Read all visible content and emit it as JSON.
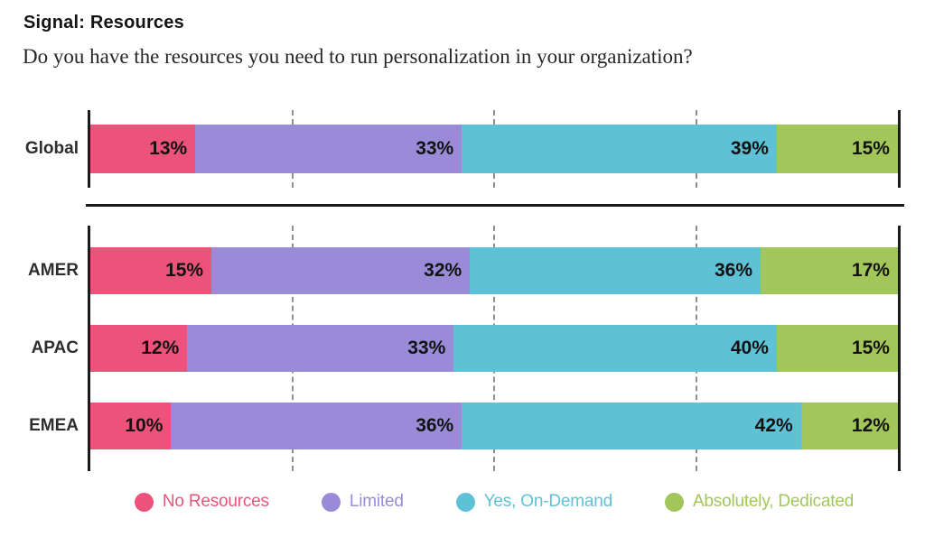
{
  "page": {
    "title": "Signal: Resources",
    "subtitle": "Do you have the resources you need to run personalization in your organization?"
  },
  "chart_data": {
    "type": "bar",
    "orientation": "horizontal",
    "stacked": true,
    "value_unit": "%",
    "x_range": [
      0,
      100
    ],
    "gridlines_at": [
      25,
      50,
      75
    ],
    "gridline_style": "dashed",
    "legend_position": "bottom",
    "data_labels": "inside right edge of each segment, bold, formatted as N%",
    "groups": [
      {
        "name": "global",
        "categories": [
          "Global"
        ]
      },
      {
        "name": "regions",
        "categories": [
          "AMER",
          "APAC",
          "EMEA"
        ]
      }
    ],
    "categories": [
      "Global",
      "AMER",
      "APAC",
      "EMEA"
    ],
    "series": [
      {
        "name": "No Resources",
        "color": "#EC537A",
        "values": [
          13,
          15,
          12,
          10
        ]
      },
      {
        "name": "Limited",
        "color": "#9A8BD8",
        "values": [
          33,
          32,
          33,
          36
        ]
      },
      {
        "name": "Yes, On-Demand",
        "color": "#5EC1D5",
        "values": [
          39,
          36,
          40,
          42
        ]
      },
      {
        "name": "Absolutely, Dedicated",
        "color": "#A2C65A",
        "values": [
          15,
          17,
          15,
          12
        ]
      }
    ]
  },
  "legend": {
    "items": [
      {
        "label": "No Resources",
        "color": "#EC537A"
      },
      {
        "label": "Limited",
        "color": "#9A8BD8"
      },
      {
        "label": "Yes, On-Demand",
        "color": "#5EC1D5"
      },
      {
        "label": "Absolutely, Dedicated",
        "color": "#A2C65A"
      }
    ]
  }
}
